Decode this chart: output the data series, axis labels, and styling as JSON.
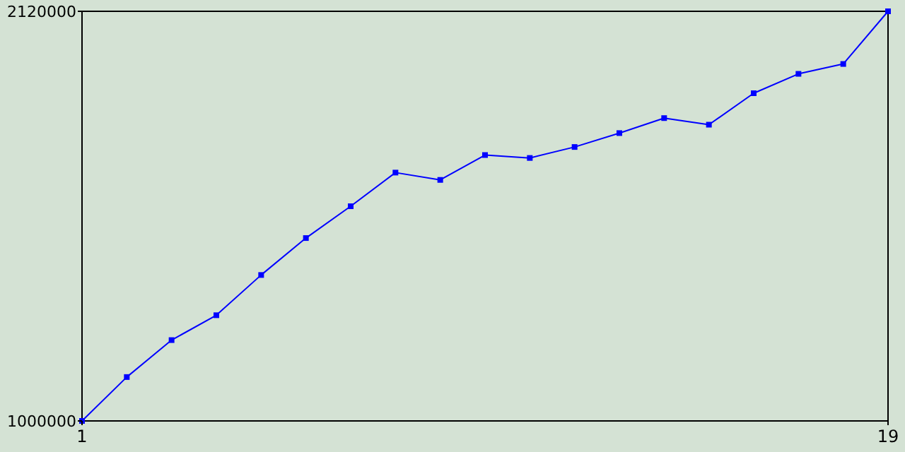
{
  "chart_data": {
    "type": "line",
    "x": [
      1,
      2,
      3,
      4,
      5,
      6,
      7,
      8,
      9,
      10,
      11,
      12,
      13,
      14,
      15,
      16,
      17,
      18,
      19
    ],
    "series": [
      {
        "color": "#0000ff",
        "values": [
          1000000,
          1120000,
          1221000,
          1289000,
          1399000,
          1500000,
          1587000,
          1679000,
          1659000,
          1727000,
          1719000,
          1749000,
          1787000,
          1828000,
          1810000,
          1896000,
          1949000,
          1976000,
          2120000
        ]
      }
    ],
    "xlim": [
      1,
      19
    ],
    "xticks": [
      1,
      19
    ],
    "ylim": [
      1000000,
      2120000
    ],
    "yticks": [
      1000000,
      2120000
    ],
    "marker": "square",
    "line_style": "solid"
  }
}
